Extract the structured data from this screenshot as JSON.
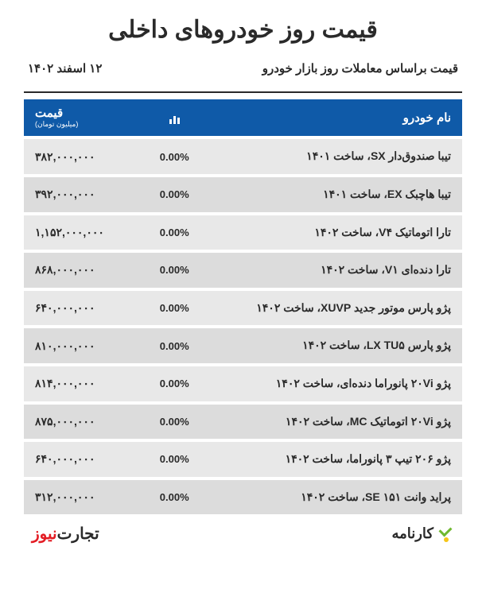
{
  "title": "قیمت روز خودروهای داخلی",
  "subtitle": "قیمت براساس معاملات روز بازار خودرو",
  "date": "۱۲ اسفند ۱۴۰۲",
  "header": {
    "name": "نام خودرو",
    "price": "قیمت",
    "price_unit": "(میلیون تومان)"
  },
  "rows": [
    {
      "name": "تیبا صندوق‌دار SX، ساخت ۱۴۰۱",
      "change": "0.00%",
      "price": "۳۸۲,۰۰۰,۰۰۰"
    },
    {
      "name": "تیبا هاچبک EX، ساخت ۱۴۰۱",
      "change": "0.00%",
      "price": "۳۹۲,۰۰۰,۰۰۰"
    },
    {
      "name": "تارا اتوماتیک V۴، ساخت ۱۴۰۲",
      "change": "0.00%",
      "price": "۱,۱۵۲,۰۰۰,۰۰۰"
    },
    {
      "name": "تارا دنده‌ای V۱، ساخت ۱۴۰۲",
      "change": "0.00%",
      "price": "۸۶۸,۰۰۰,۰۰۰"
    },
    {
      "name": "پژو پارس موتور جدید XUVP، ساخت ۱۴۰۲",
      "change": "0.00%",
      "price": "۶۴۰,۰۰۰,۰۰۰"
    },
    {
      "name": "پژو پارس LX TU۵، ساخت ۱۴۰۲",
      "change": "0.00%",
      "price": "۸۱۰,۰۰۰,۰۰۰"
    },
    {
      "name": "پژو ۲۰Vi پانوراما دنده‌ای، ساخت ۱۴۰۲",
      "change": "0.00%",
      "price": "۸۱۴,۰۰۰,۰۰۰"
    },
    {
      "name": "پژو ۲۰Vi اتوماتیک MC، ساخت ۱۴۰۲",
      "change": "0.00%",
      "price": "۸۷۵,۰۰۰,۰۰۰"
    },
    {
      "name": "پژو ۲۰۶ تیپ ۳ پانوراما، ساخت ۱۴۰۲",
      "change": "0.00%",
      "price": "۶۴۰,۰۰۰,۰۰۰"
    },
    {
      "name": "پراید وانت ۱۵۱ SE، ساخت ۱۴۰۲",
      "change": "0.00%",
      "price": "۳۱۲,۰۰۰,۰۰۰"
    }
  ],
  "footer": {
    "karnameh": "کارنامه",
    "tejarat1": "تجارت‌",
    "tejarat2": "نیوز"
  }
}
